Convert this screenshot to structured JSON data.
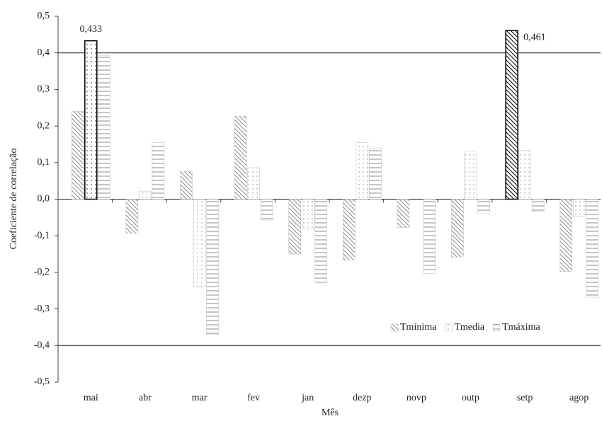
{
  "chart_data": {
    "type": "bar",
    "x_label": "Mês",
    "y_label": "Coeficiente de correlação",
    "categories": [
      "mai",
      "abr",
      "mar",
      "fev",
      "jan",
      "dezp",
      "novp",
      "outp",
      "setp",
      "agop"
    ],
    "series": [
      {
        "name": "Tmínima",
        "color": "#8c8c8c",
        "pattern": "diagonal",
        "values": [
          0.24,
          -0.093,
          0.076,
          0.227,
          -0.15,
          -0.166,
          -0.078,
          -0.158,
          0.461,
          -0.198
        ],
        "value_labels": [
          null,
          null,
          null,
          null,
          null,
          null,
          null,
          null,
          "0,461",
          null
        ]
      },
      {
        "name": "Tmedia",
        "color": "#8c8c8c",
        "pattern": "dots",
        "values": [
          0.433,
          0.022,
          -0.24,
          0.086,
          -0.082,
          0.155,
          0,
          0.131,
          0.133,
          -0.047
        ],
        "value_labels": [
          "0,433",
          null,
          null,
          null,
          null,
          null,
          null,
          null,
          null,
          null
        ]
      },
      {
        "name": "Tmáxima",
        "color": "#8c8c8c",
        "pattern": "horizontal",
        "values": [
          0.392,
          0.155,
          -0.37,
          -0.057,
          -0.228,
          0.14,
          -0.203,
          -0.04,
          -0.035,
          -0.268
        ],
        "value_labels": [
          null,
          null,
          null,
          null,
          null,
          null,
          null,
          null,
          null,
          null
        ]
      }
    ],
    "ylim": [
      -0.5,
      0.5
    ],
    "yticks": [
      {
        "value": -0.5,
        "label": "-0,5"
      },
      {
        "value": -0.4,
        "label": "-0,4"
      },
      {
        "value": -0.3,
        "label": "-0,3"
      },
      {
        "value": -0.2,
        "label": "-0,2"
      },
      {
        "value": -0.1,
        "label": "-0,1"
      },
      {
        "value": 0,
        "label": "0,0"
      },
      {
        "value": 0.1,
        "label": "0,1"
      },
      {
        "value": 0.2,
        "label": "0,2"
      },
      {
        "value": 0.3,
        "label": "0,3"
      },
      {
        "value": 0.4,
        "label": "0,4"
      },
      {
        "value": 0.5,
        "label": "0,5"
      }
    ],
    "reference_lines": [
      0.4,
      -0.4
    ],
    "legend": "lower right",
    "grid": false
  }
}
